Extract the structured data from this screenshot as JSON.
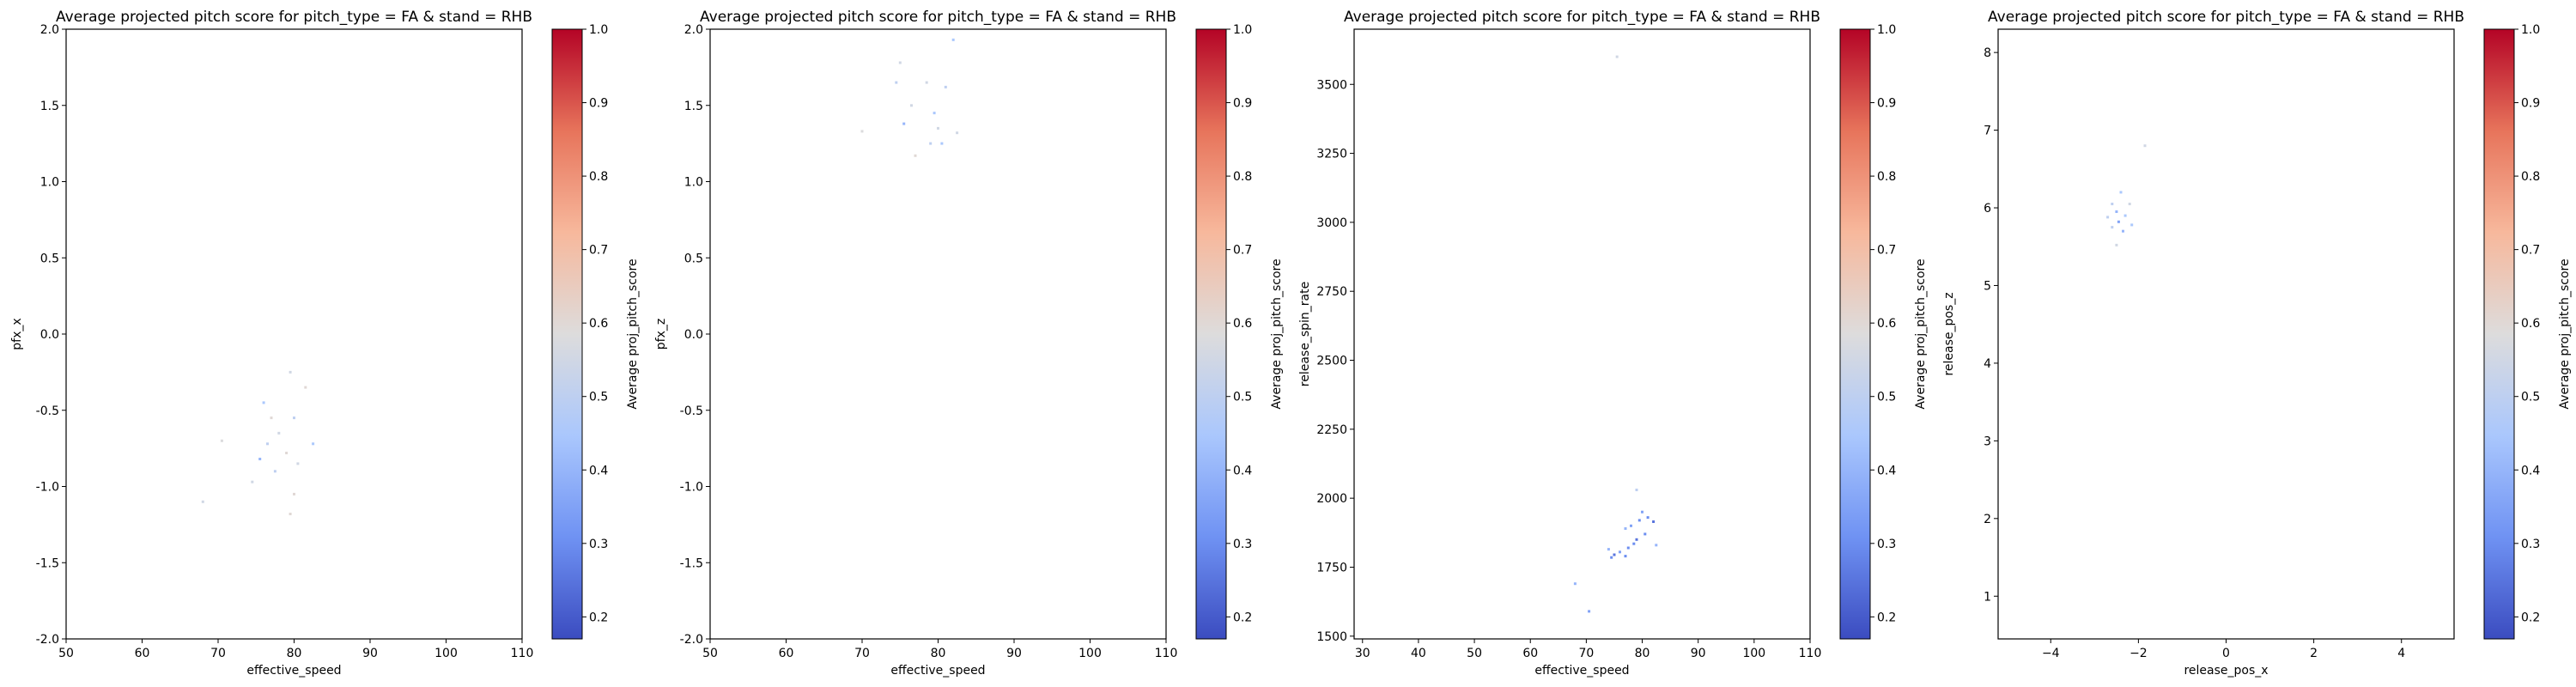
{
  "colors": {
    "cmap": [
      "#3b4cc0",
      "#6f92f3",
      "#aac7fd",
      "#dddcdc",
      "#f7b89c",
      "#e7745b",
      "#b40426"
    ],
    "axis": "#000000",
    "background": "#ffffff"
  },
  "colorbar": {
    "label": "Average proj_pitch_score",
    "range": [
      0.17,
      1.0
    ],
    "ticks": [
      "0.2",
      "0.3",
      "0.4",
      "0.5",
      "0.6",
      "0.7",
      "0.8",
      "0.9",
      "1.0"
    ],
    "tick_values": [
      0.2,
      0.3,
      0.4,
      0.5,
      0.6,
      0.7,
      0.8,
      0.9,
      1.0
    ]
  },
  "chart_data": [
    {
      "type": "heatmap",
      "title": "Average projected pitch score for pitch_type = FA & stand = RHB",
      "xlabel": "effective_speed",
      "ylabel": "pfx_x",
      "xlim": [
        50,
        110
      ],
      "ylim": [
        -2.0,
        2.0
      ],
      "xticks": [
        "50",
        "60",
        "70",
        "80",
        "90",
        "100",
        "110"
      ],
      "xtick_values": [
        50,
        60,
        70,
        80,
        90,
        100,
        110
      ],
      "yticks": [
        "-2.0",
        "-1.5",
        "-1.0",
        "-0.5",
        "0.0",
        "0.5",
        "1.0",
        "1.5",
        "2.0"
      ],
      "ytick_values": [
        -2.0,
        -1.5,
        -1.0,
        -0.5,
        0.0,
        0.5,
        1.0,
        1.5,
        2.0
      ],
      "points": [
        {
          "x": 79.5,
          "y": -0.25,
          "v": 0.55
        },
        {
          "x": 76.0,
          "y": -0.45,
          "v": 0.45
        },
        {
          "x": 77.0,
          "y": -0.55,
          "v": 0.6
        },
        {
          "x": 80.0,
          "y": -0.55,
          "v": 0.5
        },
        {
          "x": 78.0,
          "y": -0.65,
          "v": 0.55
        },
        {
          "x": 76.5,
          "y": -0.72,
          "v": 0.5
        },
        {
          "x": 82.5,
          "y": -0.72,
          "v": 0.45
        },
        {
          "x": 79.0,
          "y": -0.78,
          "v": 0.6
        },
        {
          "x": 75.5,
          "y": -0.82,
          "v": 0.4
        },
        {
          "x": 80.5,
          "y": -0.85,
          "v": 0.55
        },
        {
          "x": 77.5,
          "y": -0.9,
          "v": 0.5
        },
        {
          "x": 74.5,
          "y": -0.97,
          "v": 0.55
        },
        {
          "x": 80.0,
          "y": -1.05,
          "v": 0.6
        },
        {
          "x": 68.0,
          "y": -1.1,
          "v": 0.55
        },
        {
          "x": 79.5,
          "y": -1.18,
          "v": 0.6
        },
        {
          "x": 81.5,
          "y": -0.35,
          "v": 0.6
        },
        {
          "x": 70.5,
          "y": -0.7,
          "v": 0.58
        }
      ]
    },
    {
      "type": "heatmap",
      "title": "Average projected pitch score for pitch_type = FA & stand = RHB",
      "xlabel": "effective_speed",
      "ylabel": "pfx_z",
      "xlim": [
        50,
        110
      ],
      "ylim": [
        -2.0,
        2.0
      ],
      "xticks": [
        "50",
        "60",
        "70",
        "80",
        "90",
        "100",
        "110"
      ],
      "xtick_values": [
        50,
        60,
        70,
        80,
        90,
        100,
        110
      ],
      "yticks": [
        "-2.0",
        "-1.5",
        "-1.0",
        "-0.5",
        "0.0",
        "0.5",
        "1.0",
        "1.5",
        "2.0"
      ],
      "ytick_values": [
        -2.0,
        -1.5,
        -1.0,
        -0.5,
        0.0,
        0.5,
        1.0,
        1.5,
        2.0
      ],
      "points": [
        {
          "x": 82.0,
          "y": 1.93,
          "v": 0.45
        },
        {
          "x": 75.0,
          "y": 1.78,
          "v": 0.55
        },
        {
          "x": 74.5,
          "y": 1.65,
          "v": 0.5
        },
        {
          "x": 78.5,
          "y": 1.65,
          "v": 0.55
        },
        {
          "x": 81.0,
          "y": 1.62,
          "v": 0.5
        },
        {
          "x": 76.5,
          "y": 1.5,
          "v": 0.55
        },
        {
          "x": 79.5,
          "y": 1.45,
          "v": 0.45
        },
        {
          "x": 75.5,
          "y": 1.38,
          "v": 0.4
        },
        {
          "x": 80.0,
          "y": 1.35,
          "v": 0.55
        },
        {
          "x": 70.0,
          "y": 1.33,
          "v": 0.58
        },
        {
          "x": 82.5,
          "y": 1.32,
          "v": 0.55
        },
        {
          "x": 79.0,
          "y": 1.25,
          "v": 0.5
        },
        {
          "x": 80.5,
          "y": 1.25,
          "v": 0.45
        },
        {
          "x": 77.0,
          "y": 1.17,
          "v": 0.6
        }
      ]
    },
    {
      "type": "heatmap",
      "title": "Average projected pitch score for pitch_type = FA & stand = RHB",
      "xlabel": "effective_speed",
      "ylabel": "release_spin_rate",
      "xlim": [
        28.5,
        110
      ],
      "ylim": [
        1490,
        3700
      ],
      "xticks": [
        "30",
        "40",
        "50",
        "60",
        "70",
        "80",
        "90",
        "100",
        "110"
      ],
      "xtick_values": [
        30,
        40,
        50,
        60,
        70,
        80,
        90,
        100,
        110
      ],
      "yticks": [
        "1500",
        "1750",
        "2000",
        "2250",
        "2500",
        "2750",
        "3000",
        "3250",
        "3500"
      ],
      "ytick_values": [
        1500,
        1750,
        2000,
        2250,
        2500,
        2750,
        3000,
        3250,
        3500
      ],
      "points": [
        {
          "x": 75.5,
          "y": 3600,
          "v": 0.55
        },
        {
          "x": 79.0,
          "y": 2030,
          "v": 0.5
        },
        {
          "x": 80.0,
          "y": 1950,
          "v": 0.35
        },
        {
          "x": 81.0,
          "y": 1930,
          "v": 0.3
        },
        {
          "x": 79.5,
          "y": 1920,
          "v": 0.3
        },
        {
          "x": 82.0,
          "y": 1915,
          "v": 0.25
        },
        {
          "x": 78.0,
          "y": 1900,
          "v": 0.35
        },
        {
          "x": 77.0,
          "y": 1890,
          "v": 0.4
        },
        {
          "x": 80.5,
          "y": 1870,
          "v": 0.3
        },
        {
          "x": 79.0,
          "y": 1850,
          "v": 0.25
        },
        {
          "x": 78.5,
          "y": 1835,
          "v": 0.3
        },
        {
          "x": 82.5,
          "y": 1830,
          "v": 0.4
        },
        {
          "x": 77.5,
          "y": 1820,
          "v": 0.3
        },
        {
          "x": 74.0,
          "y": 1815,
          "v": 0.4
        },
        {
          "x": 76.0,
          "y": 1805,
          "v": 0.35
        },
        {
          "x": 75.0,
          "y": 1795,
          "v": 0.25
        },
        {
          "x": 77.0,
          "y": 1790,
          "v": 0.3
        },
        {
          "x": 74.5,
          "y": 1785,
          "v": 0.3
        },
        {
          "x": 68.0,
          "y": 1690,
          "v": 0.4
        },
        {
          "x": 70.5,
          "y": 1590,
          "v": 0.35
        }
      ]
    },
    {
      "type": "heatmap",
      "title": "Average projected pitch score for pitch_type = FA & stand = RHB",
      "xlabel": "release_pos_x",
      "ylabel": "release_pos_z",
      "xlim": [
        -5.2,
        5.2
      ],
      "ylim": [
        0.45,
        8.3
      ],
      "xticks": [
        "−4",
        "−2",
        "0",
        "2",
        "4"
      ],
      "xtick_values": [
        -4,
        -2,
        0,
        2,
        4
      ],
      "yticks": [
        "1",
        "2",
        "3",
        "4",
        "5",
        "6",
        "7",
        "8"
      ],
      "ytick_values": [
        1,
        2,
        3,
        4,
        5,
        6,
        7,
        8
      ],
      "points": [
        {
          "x": -2.4,
          "y": 6.2,
          "v": 0.45
        },
        {
          "x": -2.6,
          "y": 6.05,
          "v": 0.5
        },
        {
          "x": -2.2,
          "y": 6.05,
          "v": 0.55
        },
        {
          "x": -2.5,
          "y": 5.95,
          "v": 0.4
        },
        {
          "x": -2.3,
          "y": 5.9,
          "v": 0.45
        },
        {
          "x": -2.7,
          "y": 5.88,
          "v": 0.5
        },
        {
          "x": -2.45,
          "y": 5.82,
          "v": 0.35
        },
        {
          "x": -2.15,
          "y": 5.78,
          "v": 0.45
        },
        {
          "x": -2.6,
          "y": 5.75,
          "v": 0.5
        },
        {
          "x": -2.35,
          "y": 5.7,
          "v": 0.4
        },
        {
          "x": -1.85,
          "y": 6.8,
          "v": 0.55
        },
        {
          "x": -2.5,
          "y": 5.52,
          "v": 0.55
        }
      ]
    }
  ]
}
